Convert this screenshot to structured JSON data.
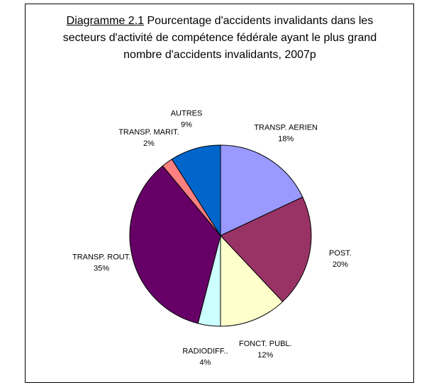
{
  "chart_data": {
    "type": "pie",
    "title_number": "Diagramme 2.1",
    "title": "Pourcentage d'accidents invalidants dans les secteurs d'activité de compétence fédérale ayant le plus grand nombre d'accidents invalidants, 2007p",
    "categories": [
      "TRANSP. AERIEN",
      "POST.",
      "FONCT. PUBL.",
      "RADIODIFF..",
      "TRANSP. ROUT.",
      "TRANSP. MARIT.",
      "AUTRES"
    ],
    "values": [
      18,
      20,
      12,
      4,
      35,
      2,
      9
    ],
    "value_labels": [
      "18%",
      "20%",
      "12%",
      "4%",
      "35%",
      "2%",
      "9%"
    ],
    "colors": [
      "#9999ff",
      "#993366",
      "#ffffcc",
      "#ccffff",
      "#660066",
      "#ff8080",
      "#0066cc"
    ]
  }
}
